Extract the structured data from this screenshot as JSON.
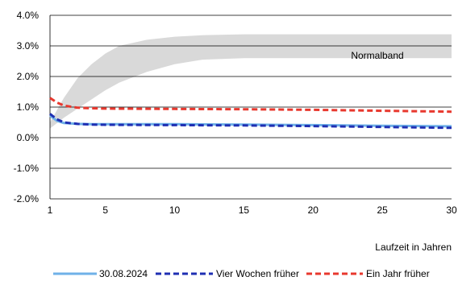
{
  "chart_data": {
    "type": "line",
    "xlabel": "Laufzeit in Jahren",
    "ylabel": "",
    "xlim": [
      1,
      30
    ],
    "ylim": [
      -2.0,
      4.0
    ],
    "x_ticks": [
      1,
      5,
      10,
      15,
      20,
      25,
      30
    ],
    "y_ticks": [
      -2.0,
      -1.0,
      0.0,
      1.0,
      2.0,
      3.0,
      4.0
    ],
    "x_tick_labels": [
      "1",
      "5",
      "10",
      "15",
      "20",
      "25",
      "30"
    ],
    "y_tick_labels": [
      "-2.0%",
      "-1.0%",
      "0.0%",
      "1.0%",
      "2.0%",
      "3.0%",
      "4.0%"
    ],
    "grid": "horizontal",
    "legend_position": "bottom",
    "band": {
      "label": "Normalband",
      "color": "#d9d9d9",
      "x": [
        1,
        2,
        3,
        4,
        5,
        6,
        8,
        10,
        12,
        15,
        20,
        25,
        30
      ],
      "lower": [
        0.3,
        0.65,
        0.95,
        1.25,
        1.55,
        1.8,
        2.15,
        2.4,
        2.55,
        2.6,
        2.6,
        2.6,
        2.6
      ],
      "upper": [
        0.5,
        1.3,
        1.95,
        2.4,
        2.75,
        3.0,
        3.2,
        3.3,
        3.35,
        3.38,
        3.38,
        3.38,
        3.38
      ]
    },
    "series": [
      {
        "name": "30.08.2024",
        "color": "#6fb1e8",
        "dash": "solid",
        "x": [
          1,
          1.5,
          2,
          3,
          4,
          5,
          10,
          15,
          20,
          25,
          30
        ],
        "y": [
          0.72,
          0.55,
          0.48,
          0.45,
          0.44,
          0.44,
          0.44,
          0.43,
          0.41,
          0.39,
          0.37
        ]
      },
      {
        "name": "Vier Wochen früher",
        "color": "#1f2fb3",
        "dash": "dashed",
        "x": [
          1,
          1.5,
          2,
          3,
          4,
          5,
          10,
          15,
          20,
          25,
          30
        ],
        "y": [
          0.78,
          0.6,
          0.5,
          0.45,
          0.43,
          0.42,
          0.41,
          0.4,
          0.38,
          0.35,
          0.32
        ]
      },
      {
        "name": "Ein Jahr früher",
        "color": "#e8382e",
        "dash": "dashed",
        "x": [
          1,
          1.5,
          2,
          3,
          4,
          5,
          10,
          15,
          20,
          25,
          30
        ],
        "y": [
          1.3,
          1.15,
          1.05,
          0.98,
          0.96,
          0.95,
          0.94,
          0.93,
          0.91,
          0.88,
          0.85
        ]
      }
    ]
  }
}
